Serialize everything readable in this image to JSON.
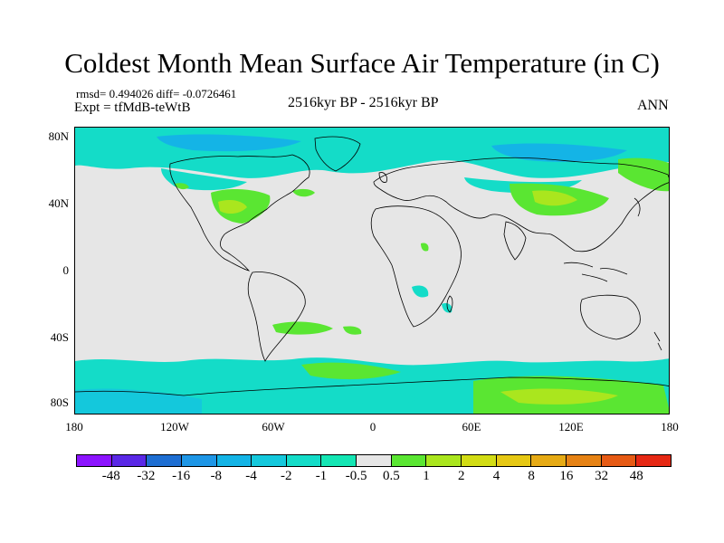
{
  "title": "Coldest Month Mean Surface Air Temperature (in C)",
  "stats_line": "rmsd= 0.494026 diff= -0.0726461",
  "expt_line": "Expt = tfMdB-teWtB",
  "period_label": "2516kyr BP - 2516kyr BP",
  "season_label": "ANN",
  "y_axis_labels": [
    "80N",
    "40N",
    "0",
    "40S",
    "80S"
  ],
  "x_axis_labels": [
    "180",
    "120W",
    "60W",
    "0",
    "60E",
    "120E",
    "180"
  ],
  "colorbar": {
    "colors": [
      "#8c14ff",
      "#5a28e6",
      "#1e6ed2",
      "#1e96e6",
      "#14b4e6",
      "#14c8dc",
      "#14dcc8",
      "#14e6b4",
      "#e6e6e6",
      "#5ae632",
      "#aae61e",
      "#d2dc14",
      "#e6c814",
      "#e6aa14",
      "#e68214",
      "#e65a14",
      "#e62814"
    ],
    "labels": [
      "-48",
      "-32",
      "-16",
      "-8",
      "-4",
      "-2",
      "-1",
      "-0.5",
      "0.5",
      "1",
      "2",
      "4",
      "8",
      "16",
      "32",
      "48"
    ]
  },
  "map_colors": {
    "background": "#e6e6e6",
    "cyan": "#14dcc8",
    "teal": "#14c8dc",
    "blue": "#14b4e6",
    "green": "#5ae632",
    "yellowgreen": "#aae61e",
    "yellow": "#d2dc14"
  }
}
